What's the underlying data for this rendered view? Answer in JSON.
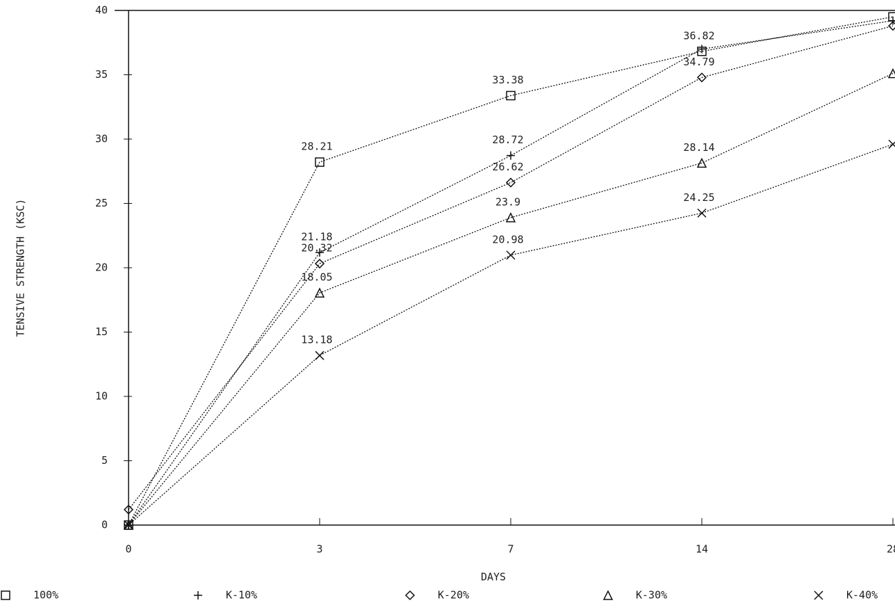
{
  "chart_data": {
    "type": "line",
    "y_label": "TENSIVE STRENGTH (KSC)",
    "x_label": "DAYS",
    "categories": [
      "0",
      "3",
      "7",
      "14",
      "28"
    ],
    "ylim": [
      0,
      40
    ],
    "yticks": [
      0,
      5,
      10,
      15,
      20,
      25,
      30,
      35,
      40
    ],
    "line_style": "dotted",
    "series": [
      {
        "name": "100%",
        "marker": "square",
        "color": "#111111",
        "values": [
          0,
          28.21,
          33.38,
          36.82,
          39.5
        ],
        "value_labels": [
          null,
          "28.21",
          "33.38",
          "36.82",
          null
        ]
      },
      {
        "name": "K-10%",
        "marker": "plus",
        "color": "#111111",
        "values": [
          0,
          21.18,
          28.72,
          37.0,
          39.2
        ],
        "value_labels": [
          null,
          "21.18",
          "28.72",
          null,
          null
        ]
      },
      {
        "name": "K-20%",
        "marker": "diamond",
        "color": "#111111",
        "values": [
          1.2,
          20.32,
          26.62,
          34.79,
          38.8
        ],
        "value_labels": [
          null,
          "20.32",
          "26.62",
          "34.79",
          null
        ]
      },
      {
        "name": "K-30%",
        "marker": "triangle",
        "color": "#111111",
        "values": [
          0,
          18.05,
          23.9,
          28.14,
          35.1
        ],
        "value_labels": [
          null,
          "18.05",
          "23.9",
          "28.14",
          null
        ]
      },
      {
        "name": "K-40%",
        "marker": "cross",
        "color": "#111111",
        "values": [
          0,
          13.18,
          20.98,
          24.25,
          29.6
        ],
        "value_labels": [
          null,
          "13.18",
          "20.98",
          "24.25",
          null
        ]
      }
    ]
  }
}
